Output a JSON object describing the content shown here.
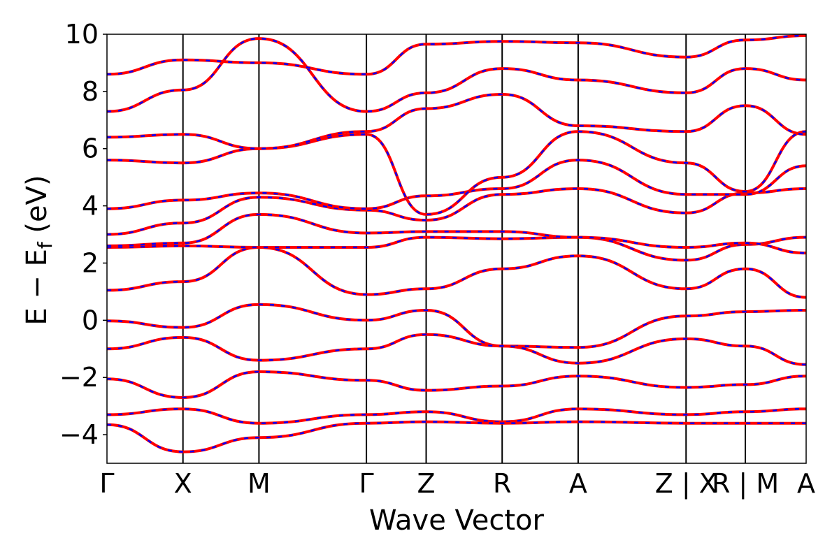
{
  "chart_data": {
    "type": "line",
    "xlabel": "Wave Vector",
    "ylabel_main": "E − E",
    "ylabel_sub": "f",
    "ylabel_unit": " (eV)",
    "ylim": [
      -5,
      10
    ],
    "yticks": [
      10,
      8,
      6,
      4,
      2,
      0,
      -2,
      -4
    ],
    "ytick_labels": [
      "10",
      "8",
      "6",
      "4",
      "2",
      "0",
      "−2",
      "−4"
    ],
    "kpoint_labels": [
      "Γ",
      "X",
      "M",
      "Γ",
      "Z",
      "R",
      "A",
      "Z | X",
      "R | M",
      "A"
    ],
    "kpoint_positions": [
      0,
      1,
      2,
      3.414,
      4.2,
      5.2,
      6.2,
      7.62,
      8.4,
      9.2
    ],
    "xlim": [
      0,
      9.2
    ],
    "colors": {
      "band": "#ff0000",
      "dash": "#0000ff",
      "axis": "#000000"
    },
    "series": [
      {
        "y": [
          -0.02,
          -0.25,
          0.55,
          0.0,
          0.35,
          -0.9,
          -0.95,
          0.15,
          0.3,
          0.35
        ]
      },
      {
        "y": [
          1.05,
          1.35,
          2.55,
          0.9,
          1.1,
          1.8,
          2.25,
          1.1,
          1.8,
          0.8
        ]
      },
      {
        "y": [
          2.55,
          2.6,
          2.55,
          2.55,
          2.9,
          2.85,
          2.9,
          2.1,
          2.65,
          2.9
        ]
      },
      {
        "y": [
          2.6,
          2.7,
          3.7,
          3.05,
          3.1,
          3.1,
          2.9,
          2.55,
          2.7,
          2.35
        ]
      },
      {
        "y": [
          3.0,
          3.4,
          4.3,
          3.85,
          3.5,
          4.4,
          4.6,
          3.75,
          4.45,
          4.6
        ]
      },
      {
        "y": [
          3.9,
          4.2,
          4.45,
          3.9,
          4.35,
          4.6,
          5.6,
          4.4,
          4.4,
          5.4
        ]
      },
      {
        "y": [
          -1.0,
          -0.6,
          -1.4,
          -1.0,
          -0.5,
          -0.9,
          -1.5,
          -0.65,
          -0.9,
          -1.55
        ]
      },
      {
        "y": [
          -2.05,
          -2.7,
          -1.8,
          -2.1,
          -2.45,
          -2.3,
          -1.95,
          -2.35,
          -2.25,
          -1.95
        ]
      },
      {
        "y": [
          -3.3,
          -3.1,
          -3.6,
          -3.3,
          -3.2,
          -3.55,
          -3.1,
          -3.3,
          -3.2,
          -3.1
        ]
      },
      {
        "y": [
          -3.65,
          -4.6,
          -4.1,
          -3.6,
          -3.55,
          -3.6,
          -3.55,
          -3.6,
          -3.6,
          -3.6
        ]
      },
      {
        "y": [
          5.6,
          5.5,
          6.0,
          6.5,
          3.7,
          5.0,
          6.6,
          5.5,
          4.5,
          6.6
        ]
      },
      {
        "y": [
          6.4,
          6.5,
          6.0,
          6.6,
          7.4,
          7.9,
          6.8,
          6.6,
          7.5,
          6.5
        ]
      },
      {
        "y": [
          7.3,
          8.05,
          9.85,
          7.3,
          7.95,
          8.8,
          8.4,
          7.95,
          8.8,
          8.4
        ]
      },
      {
        "y": [
          8.6,
          9.1,
          9.0,
          8.6,
          9.65,
          9.75,
          9.7,
          9.2,
          9.8,
          9.95
        ]
      }
    ]
  }
}
